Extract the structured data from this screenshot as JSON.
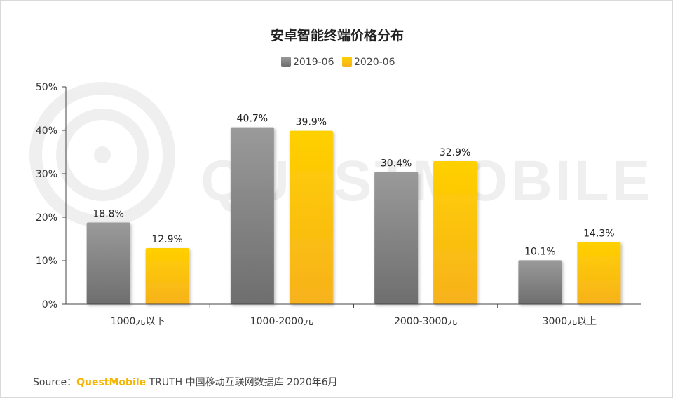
{
  "chart_data": {
    "type": "bar",
    "title": "安卓智能终端价格分布",
    "categories": [
      "1000元以下",
      "1000-2000元",
      "2000-3000元",
      "3000元以上"
    ],
    "series": [
      {
        "name": "2019-06",
        "values": [
          18.8,
          40.7,
          30.4,
          10.1
        ],
        "labels": [
          "18.8%",
          "40.7%",
          "30.4%",
          "10.1%"
        ]
      },
      {
        "name": "2020-06",
        "values": [
          12.9,
          39.9,
          32.9,
          14.3
        ],
        "labels": [
          "12.9%",
          "39.9%",
          "32.9%",
          "14.3%"
        ]
      }
    ],
    "y_ticks": [
      "0%",
      "10%",
      "20%",
      "30%",
      "40%",
      "50%"
    ],
    "ylim": [
      0,
      50
    ],
    "grid": false,
    "legend_position": "top-center",
    "colors": {
      "series_1": [
        "#9a9a9a",
        "#6e6e6e"
      ],
      "series_2": [
        "#ffd000",
        "#f7b21c"
      ]
    }
  },
  "watermark": "QUESTMOBILE",
  "source": {
    "prefix": "Source：",
    "brand": "QuestMobile",
    "suffix": " TRUTH 中国移动互联网数据库 2020年6月"
  }
}
